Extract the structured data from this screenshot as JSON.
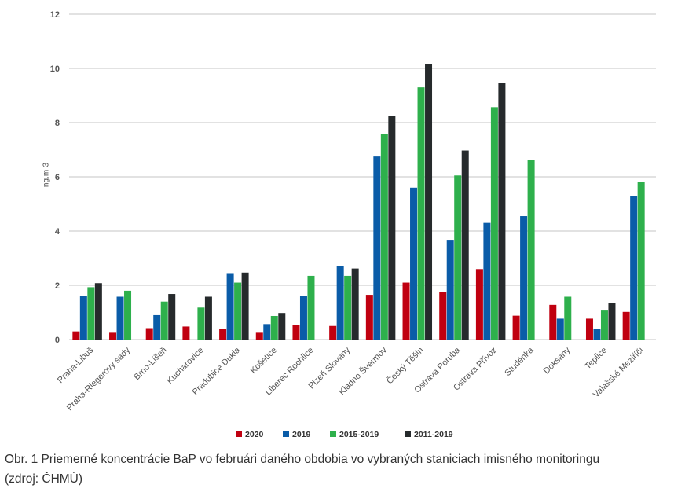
{
  "chart_data": {
    "type": "bar",
    "title": "",
    "xlabel": "",
    "ylabel": "ng.m-3",
    "ylim": [
      0,
      12
    ],
    "yticks": [
      0,
      2,
      4,
      6,
      8,
      10,
      12
    ],
    "grid": true,
    "legend_position": "bottom",
    "categories": [
      "Praha-Libuš",
      "Praha-Riegerovy sady",
      "Brno-Líšeň",
      "Kuchařovice",
      "Pradubice Dukla",
      "Košetice",
      "Liberec Rochlice",
      "Plzeň Slovany",
      "Kladno Švermov",
      "Český Těšín",
      "Ostrava Poruba",
      "Ostrava Přívoz",
      "Studénka",
      "Doksany",
      "Teplice",
      "Valašské Meziříčí"
    ],
    "series": [
      {
        "name": "2020",
        "color": "#c00010",
        "values": [
          0.3,
          0.25,
          0.42,
          0.48,
          0.4,
          0.25,
          0.55,
          0.5,
          1.65,
          2.1,
          1.75,
          2.6,
          0.88,
          1.28,
          0.77,
          1.02
        ]
      },
      {
        "name": "2019",
        "color": "#0a5ca8",
        "values": [
          1.6,
          1.58,
          0.9,
          null,
          2.45,
          0.57,
          1.6,
          2.7,
          6.75,
          5.6,
          3.65,
          4.3,
          4.55,
          0.77,
          0.4,
          5.3
        ]
      },
      {
        "name": "2015-2019",
        "color": "#2eb04c",
        "values": [
          1.93,
          1.8,
          1.4,
          1.18,
          2.1,
          0.87,
          2.35,
          2.35,
          7.58,
          9.3,
          6.05,
          8.57,
          6.62,
          1.58,
          1.07,
          5.8
        ]
      },
      {
        "name": "2011-2019",
        "color": "#262a2c",
        "values": [
          2.08,
          null,
          1.68,
          1.58,
          2.47,
          0.98,
          null,
          2.62,
          8.25,
          10.17,
          6.97,
          9.45,
          null,
          null,
          1.35,
          null
        ]
      }
    ]
  },
  "caption": {
    "line1": "Obr. 1 Priemerné koncentrácie BaP vo februári daného obdobia vo vybraných staniciach imisného monitoringu",
    "line2": "(zdroj: ČHMÚ)"
  }
}
